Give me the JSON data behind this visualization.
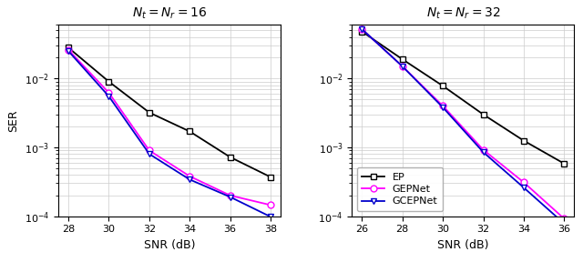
{
  "plot1": {
    "title": "$N_t = N_r = 16$",
    "snr": [
      28,
      30,
      32,
      34,
      36,
      38
    ],
    "EP": [
      0.028,
      0.009,
      0.0032,
      0.0017,
      0.00072,
      0.00037
    ],
    "GEPNet": [
      0.026,
      0.0062,
      0.0009,
      0.00038,
      0.0002,
      0.000145
    ],
    "GCEPNet": [
      0.025,
      0.0055,
      0.0008,
      0.00034,
      0.00019,
      9.8e-05
    ]
  },
  "plot2": {
    "title": "$N_t = N_r = 32$",
    "snr": [
      26,
      28,
      30,
      32,
      34,
      36
    ],
    "EP": [
      0.048,
      0.019,
      0.0078,
      0.003,
      0.00125,
      0.00058
    ],
    "GEPNet": [
      0.052,
      0.015,
      0.004,
      0.00092,
      0.00031,
      9.2e-05
    ],
    "GCEPNet": [
      0.052,
      0.015,
      0.0038,
      0.00085,
      0.00026,
      7.8e-05
    ]
  },
  "legend_loc_plot2": "lower left",
  "EP_color": "#000000",
  "GEPNet_color": "#ff00ff",
  "GCEPNet_color": "#0000cc",
  "EP_marker": "s",
  "GEPNet_marker": "o",
  "GCEPNet_marker": "v",
  "ylabel": "SER",
  "xlabel": "SNR (dB)",
  "ylim": [
    0.0001,
    0.06
  ],
  "grid_color": "#cccccc"
}
